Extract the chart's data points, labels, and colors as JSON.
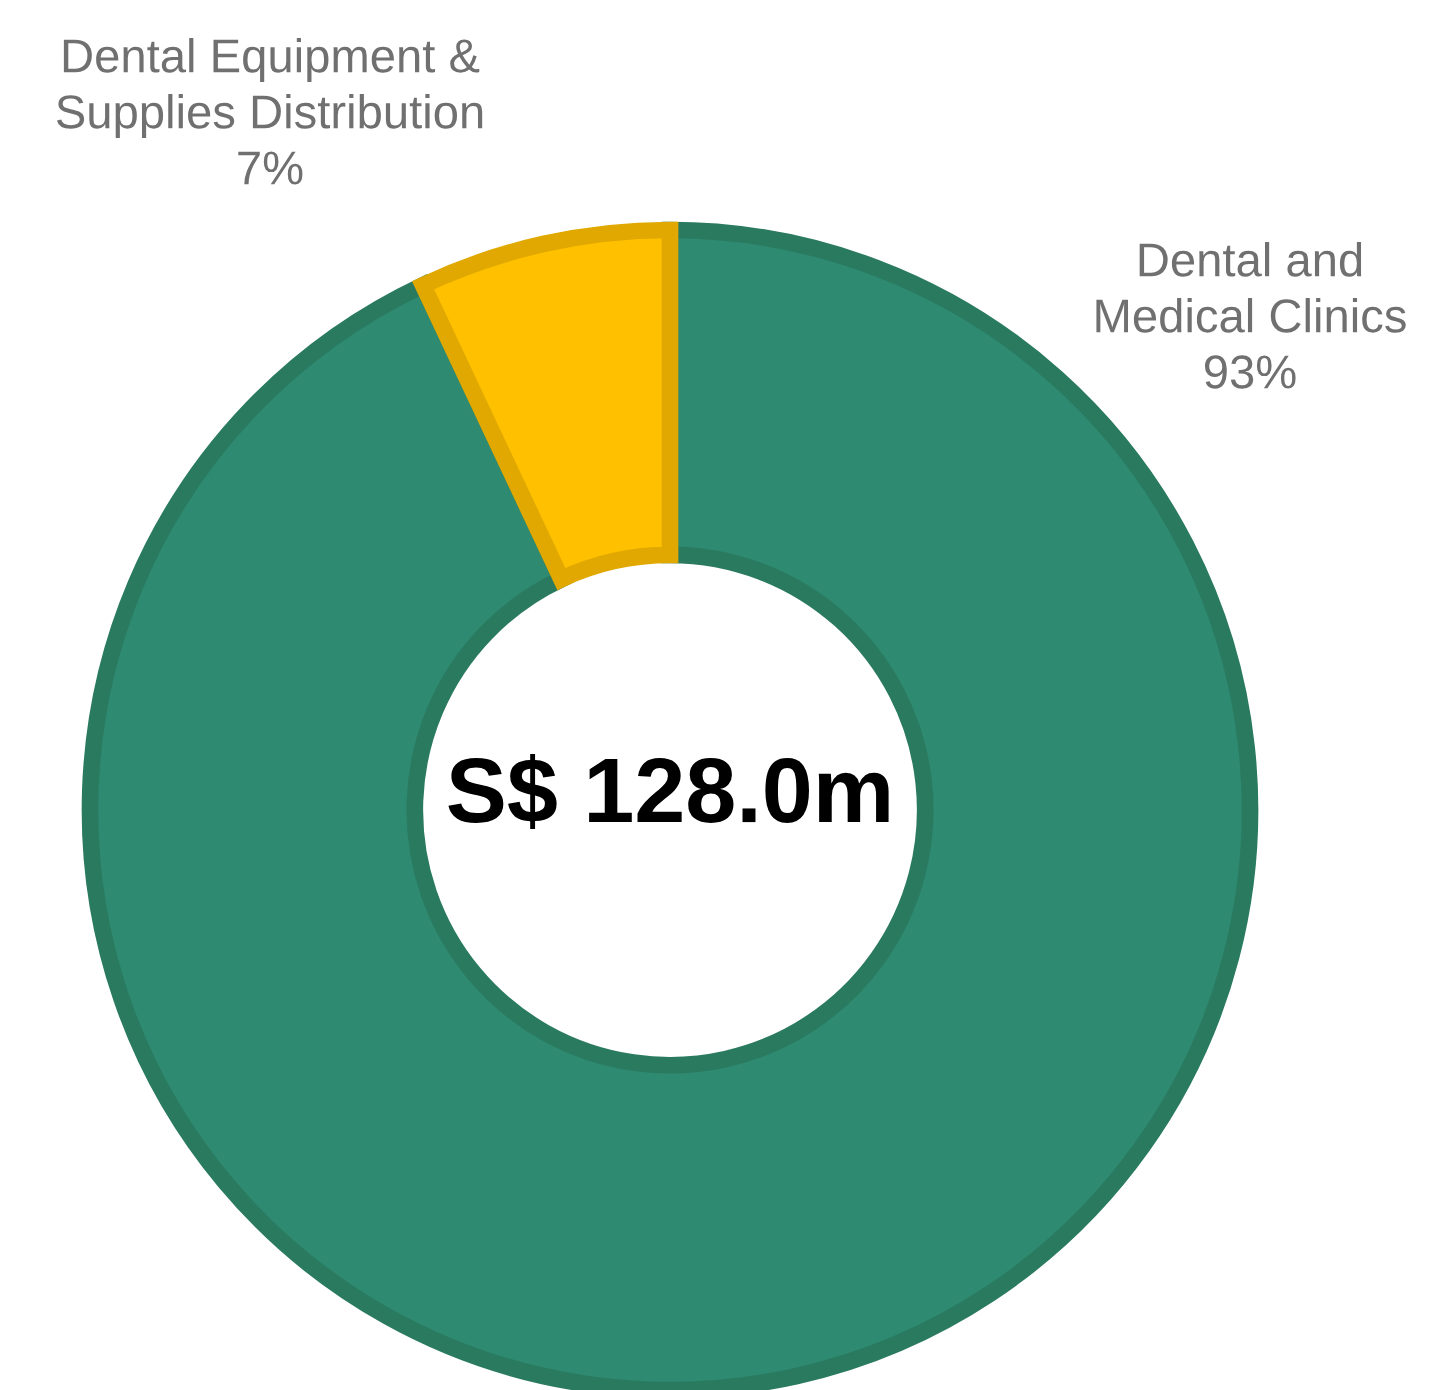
{
  "chart_data": {
    "type": "donut",
    "categories": [
      "Dental and\nMedical Clinics",
      "Dental Equipment &\nSupplies Distribution"
    ],
    "values": [
      93,
      7
    ],
    "value_labels": [
      "93%",
      "7%"
    ],
    "colors": [
      "#2e8a70",
      "#ffc000"
    ],
    "annotations": [
      "S$ 128.0m"
    ],
    "legend": false
  }
}
